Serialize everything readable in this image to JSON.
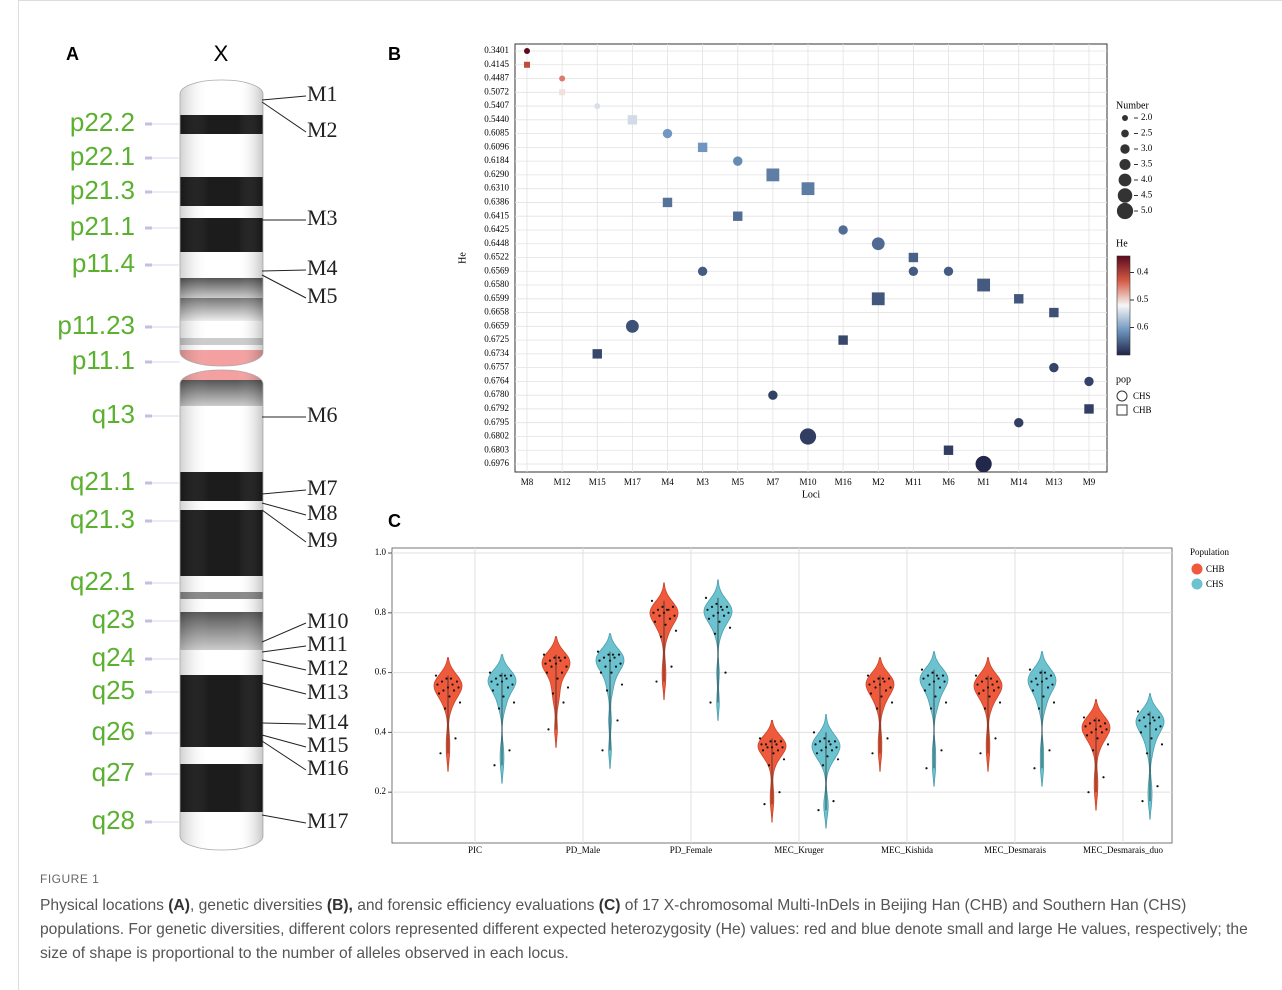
{
  "panel_a": {
    "label": "A",
    "chromosome": "X",
    "bands": [
      "p22.2",
      "p22.1",
      "p21.3",
      "p21.1",
      "p11.4",
      "p11.23",
      "p11.1",
      "q13",
      "q21.1",
      "q21.3",
      "q22.1",
      "q23",
      "q24",
      "q25",
      "q26",
      "q27",
      "q28"
    ],
    "markers": [
      "M1",
      "M2",
      "M3",
      "M4",
      "M5",
      "M6",
      "M7",
      "M8",
      "M9",
      "M10",
      "M11",
      "M12",
      "M13",
      "M14",
      "M15",
      "M16",
      "M17"
    ]
  },
  "chart_data": [
    {
      "type": "scatter",
      "panel_label": "B",
      "x_label": "Loci",
      "y_label": "He",
      "categories": [
        "M8",
        "M12",
        "M15",
        "M17",
        "M4",
        "M3",
        "M5",
        "M7",
        "M10",
        "M16",
        "M2",
        "M11",
        "M6",
        "M1",
        "M14",
        "M13",
        "M9"
      ],
      "yticks": [
        0.3401,
        0.4145,
        0.4487,
        0.5072,
        0.5407,
        {
          "value": 0.544,
          "label": "0.5440"
        },
        0.6085,
        0.6096,
        0.6184,
        {
          "value": 0.629,
          "label": "0.6290"
        },
        {
          "value": 0.631,
          "label": "0.6310"
        },
        0.6386,
        0.6415,
        0.6425,
        0.6448,
        0.6522,
        0.6569,
        {
          "value": 0.658,
          "label": "0.6580"
        },
        0.6599,
        0.6658,
        0.6659,
        0.6725,
        0.6734,
        0.6757,
        0.6764,
        {
          "value": 0.678,
          "label": "0.6780"
        },
        0.6792,
        0.6795,
        0.6802,
        0.6803,
        0.6976
      ],
      "grid": true,
      "series": [
        {
          "name": "CHS",
          "marker": "circle",
          "x": [
            "M8",
            "M12",
            "M15",
            "M17",
            "M4",
            "M3",
            "M5",
            "M7",
            "M10",
            "M16",
            "M2",
            "M11",
            "M6",
            "M1",
            "M14",
            "M13",
            "M9"
          ],
          "values": [
            0.3401,
            0.4487,
            0.5407,
            0.6659,
            0.6085,
            0.6569,
            0.6184,
            0.678,
            0.6802,
            0.6425,
            0.6448,
            0.6569,
            0.6569,
            0.6976,
            0.6795,
            0.6757,
            0.6764
          ],
          "sizes": [
            2,
            2,
            2,
            4,
            3,
            3,
            3,
            3,
            5,
            3,
            4,
            3,
            3,
            5,
            3,
            3,
            3
          ]
        },
        {
          "name": "CHB",
          "marker": "square",
          "x": [
            "M8",
            "M12",
            "M15",
            "M17",
            "M4",
            "M3",
            "M5",
            "M7",
            "M10",
            "M16",
            "M2",
            "M11",
            "M6",
            "M1",
            "M14",
            "M13",
            "M9"
          ],
          "values": [
            0.4145,
            0.5072,
            0.6734,
            0.544,
            0.6386,
            0.6096,
            0.6415,
            0.629,
            0.631,
            0.6725,
            0.6599,
            0.6522,
            0.6803,
            0.658,
            0.6599,
            0.6658,
            0.6792
          ],
          "sizes": [
            2,
            2,
            3,
            3,
            3,
            3,
            3,
            4,
            4,
            3,
            4,
            3,
            3,
            4,
            3,
            3,
            3
          ]
        }
      ],
      "size_legend": {
        "title": "Number",
        "ticks": [
          {
            "value": 2,
            "label": "2.0"
          },
          2.5,
          {
            "value": 3,
            "label": "3.0"
          },
          3.5,
          {
            "value": 4,
            "label": "4.0"
          },
          4.5,
          {
            "value": 5,
            "label": "5.0"
          }
        ]
      },
      "color_legend": {
        "title": "He",
        "ticks": [
          0.4,
          0.5,
          0.6
        ],
        "lim": [
          0.34,
          0.7
        ],
        "colormap": [
          "#5c0a1e",
          "#d45b45",
          "#f6f6f6",
          "#6f96bf",
          "#1f2548"
        ]
      },
      "legend_title": "pop"
    },
    {
      "type": "violin",
      "panel_label": "C",
      "categories": [
        "PIC",
        "PD_Male",
        "PD_Female",
        "MEC_Kruger",
        "MEC_Kishida",
        "MEC_Desmarais",
        "MEC_Desmarais_duo"
      ],
      "ylim": [
        0.03,
        1.0
      ],
      "yticks": [
        0.2,
        0.4,
        0.6,
        0.8,
        {
          "value": 1,
          "label": "1.0"
        }
      ],
      "grid": true,
      "legend_title": "Population",
      "series": [
        {
          "name": "CHB",
          "color": "#ee5a3b",
          "values": [
            [
              0.59,
              0.58,
              0.57,
              0.57,
              0.56,
              0.56,
              0.55,
              0.55,
              0.54,
              0.54,
              0.53,
              0.52,
              0.5,
              0.48,
              0.38,
              0.33,
              0.58
            ],
            [
              0.66,
              0.65,
              0.65,
              0.64,
              0.64,
              0.63,
              0.63,
              0.62,
              0.62,
              0.6,
              0.6,
              0.58,
              0.55,
              0.53,
              0.5,
              0.41,
              0.65
            ],
            [
              0.84,
              0.82,
              0.82,
              0.81,
              0.81,
              0.8,
              0.8,
              0.79,
              0.79,
              0.78,
              0.77,
              0.76,
              0.74,
              0.72,
              0.62,
              0.57,
              0.81
            ],
            [
              0.38,
              0.37,
              0.37,
              0.36,
              0.36,
              0.36,
              0.35,
              0.35,
              0.35,
              0.34,
              0.34,
              0.33,
              0.31,
              0.29,
              0.2,
              0.16,
              0.37
            ],
            [
              0.59,
              0.58,
              0.58,
              0.57,
              0.57,
              0.56,
              0.56,
              0.55,
              0.55,
              0.54,
              0.53,
              0.52,
              0.5,
              0.48,
              0.38,
              0.33,
              0.58
            ],
            [
              0.59,
              0.58,
              0.57,
              0.57,
              0.56,
              0.56,
              0.55,
              0.55,
              0.54,
              0.54,
              0.53,
              0.52,
              0.5,
              0.48,
              0.38,
              0.33,
              0.58
            ],
            [
              0.45,
              0.44,
              0.43,
              0.43,
              0.42,
              0.42,
              0.41,
              0.41,
              0.4,
              0.4,
              0.39,
              0.38,
              0.36,
              0.34,
              0.25,
              0.2,
              0.44
            ]
          ]
        },
        {
          "name": "CHS",
          "color": "#6cc3cf",
          "values": [
            [
              0.6,
              0.59,
              0.59,
              0.58,
              0.58,
              0.57,
              0.57,
              0.56,
              0.56,
              0.55,
              0.54,
              0.52,
              0.5,
              0.48,
              0.34,
              0.29,
              0.59
            ],
            [
              0.67,
              0.66,
              0.66,
              0.65,
              0.65,
              0.64,
              0.64,
              0.63,
              0.62,
              0.62,
              0.6,
              0.6,
              0.56,
              0.54,
              0.44,
              0.34,
              0.66
            ],
            [
              0.85,
              0.83,
              0.82,
              0.82,
              0.81,
              0.81,
              0.8,
              0.8,
              0.79,
              0.79,
              0.78,
              0.77,
              0.75,
              0.73,
              0.6,
              0.5,
              0.82
            ],
            [
              0.4,
              0.38,
              0.37,
              0.37,
              0.36,
              0.36,
              0.35,
              0.35,
              0.34,
              0.34,
              0.33,
              0.32,
              0.31,
              0.29,
              0.17,
              0.14,
              0.37
            ],
            [
              0.61,
              0.6,
              0.59,
              0.59,
              0.58,
              0.58,
              0.57,
              0.57,
              0.56,
              0.55,
              0.54,
              0.52,
              0.5,
              0.48,
              0.34,
              0.28,
              0.59
            ],
            [
              0.61,
              0.6,
              0.59,
              0.58,
              0.58,
              0.57,
              0.57,
              0.56,
              0.56,
              0.55,
              0.54,
              0.52,
              0.5,
              0.48,
              0.34,
              0.28,
              0.6
            ],
            [
              0.47,
              0.46,
              0.45,
              0.45,
              0.44,
              0.44,
              0.43,
              0.42,
              0.42,
              0.41,
              0.4,
              0.38,
              0.36,
              0.33,
              0.22,
              0.17,
              0.45
            ]
          ]
        }
      ]
    }
  ],
  "caption": {
    "label": "FIGURE 1",
    "parts": [
      "Physical locations ",
      "(A)",
      ", genetic diversities ",
      "(B),",
      " and forensic efficiency evaluations ",
      "(C)",
      " of 17 X-chromosomal Multi-InDels in Beijing Han (CHB) and Southern Han (CHS) populations. For genetic diversities, different colors represented different expected heterozygosity (He) values: red and blue denote small and large He values, respectively; the size of shape is proportional to the number of alleles observed in each locus."
    ]
  }
}
